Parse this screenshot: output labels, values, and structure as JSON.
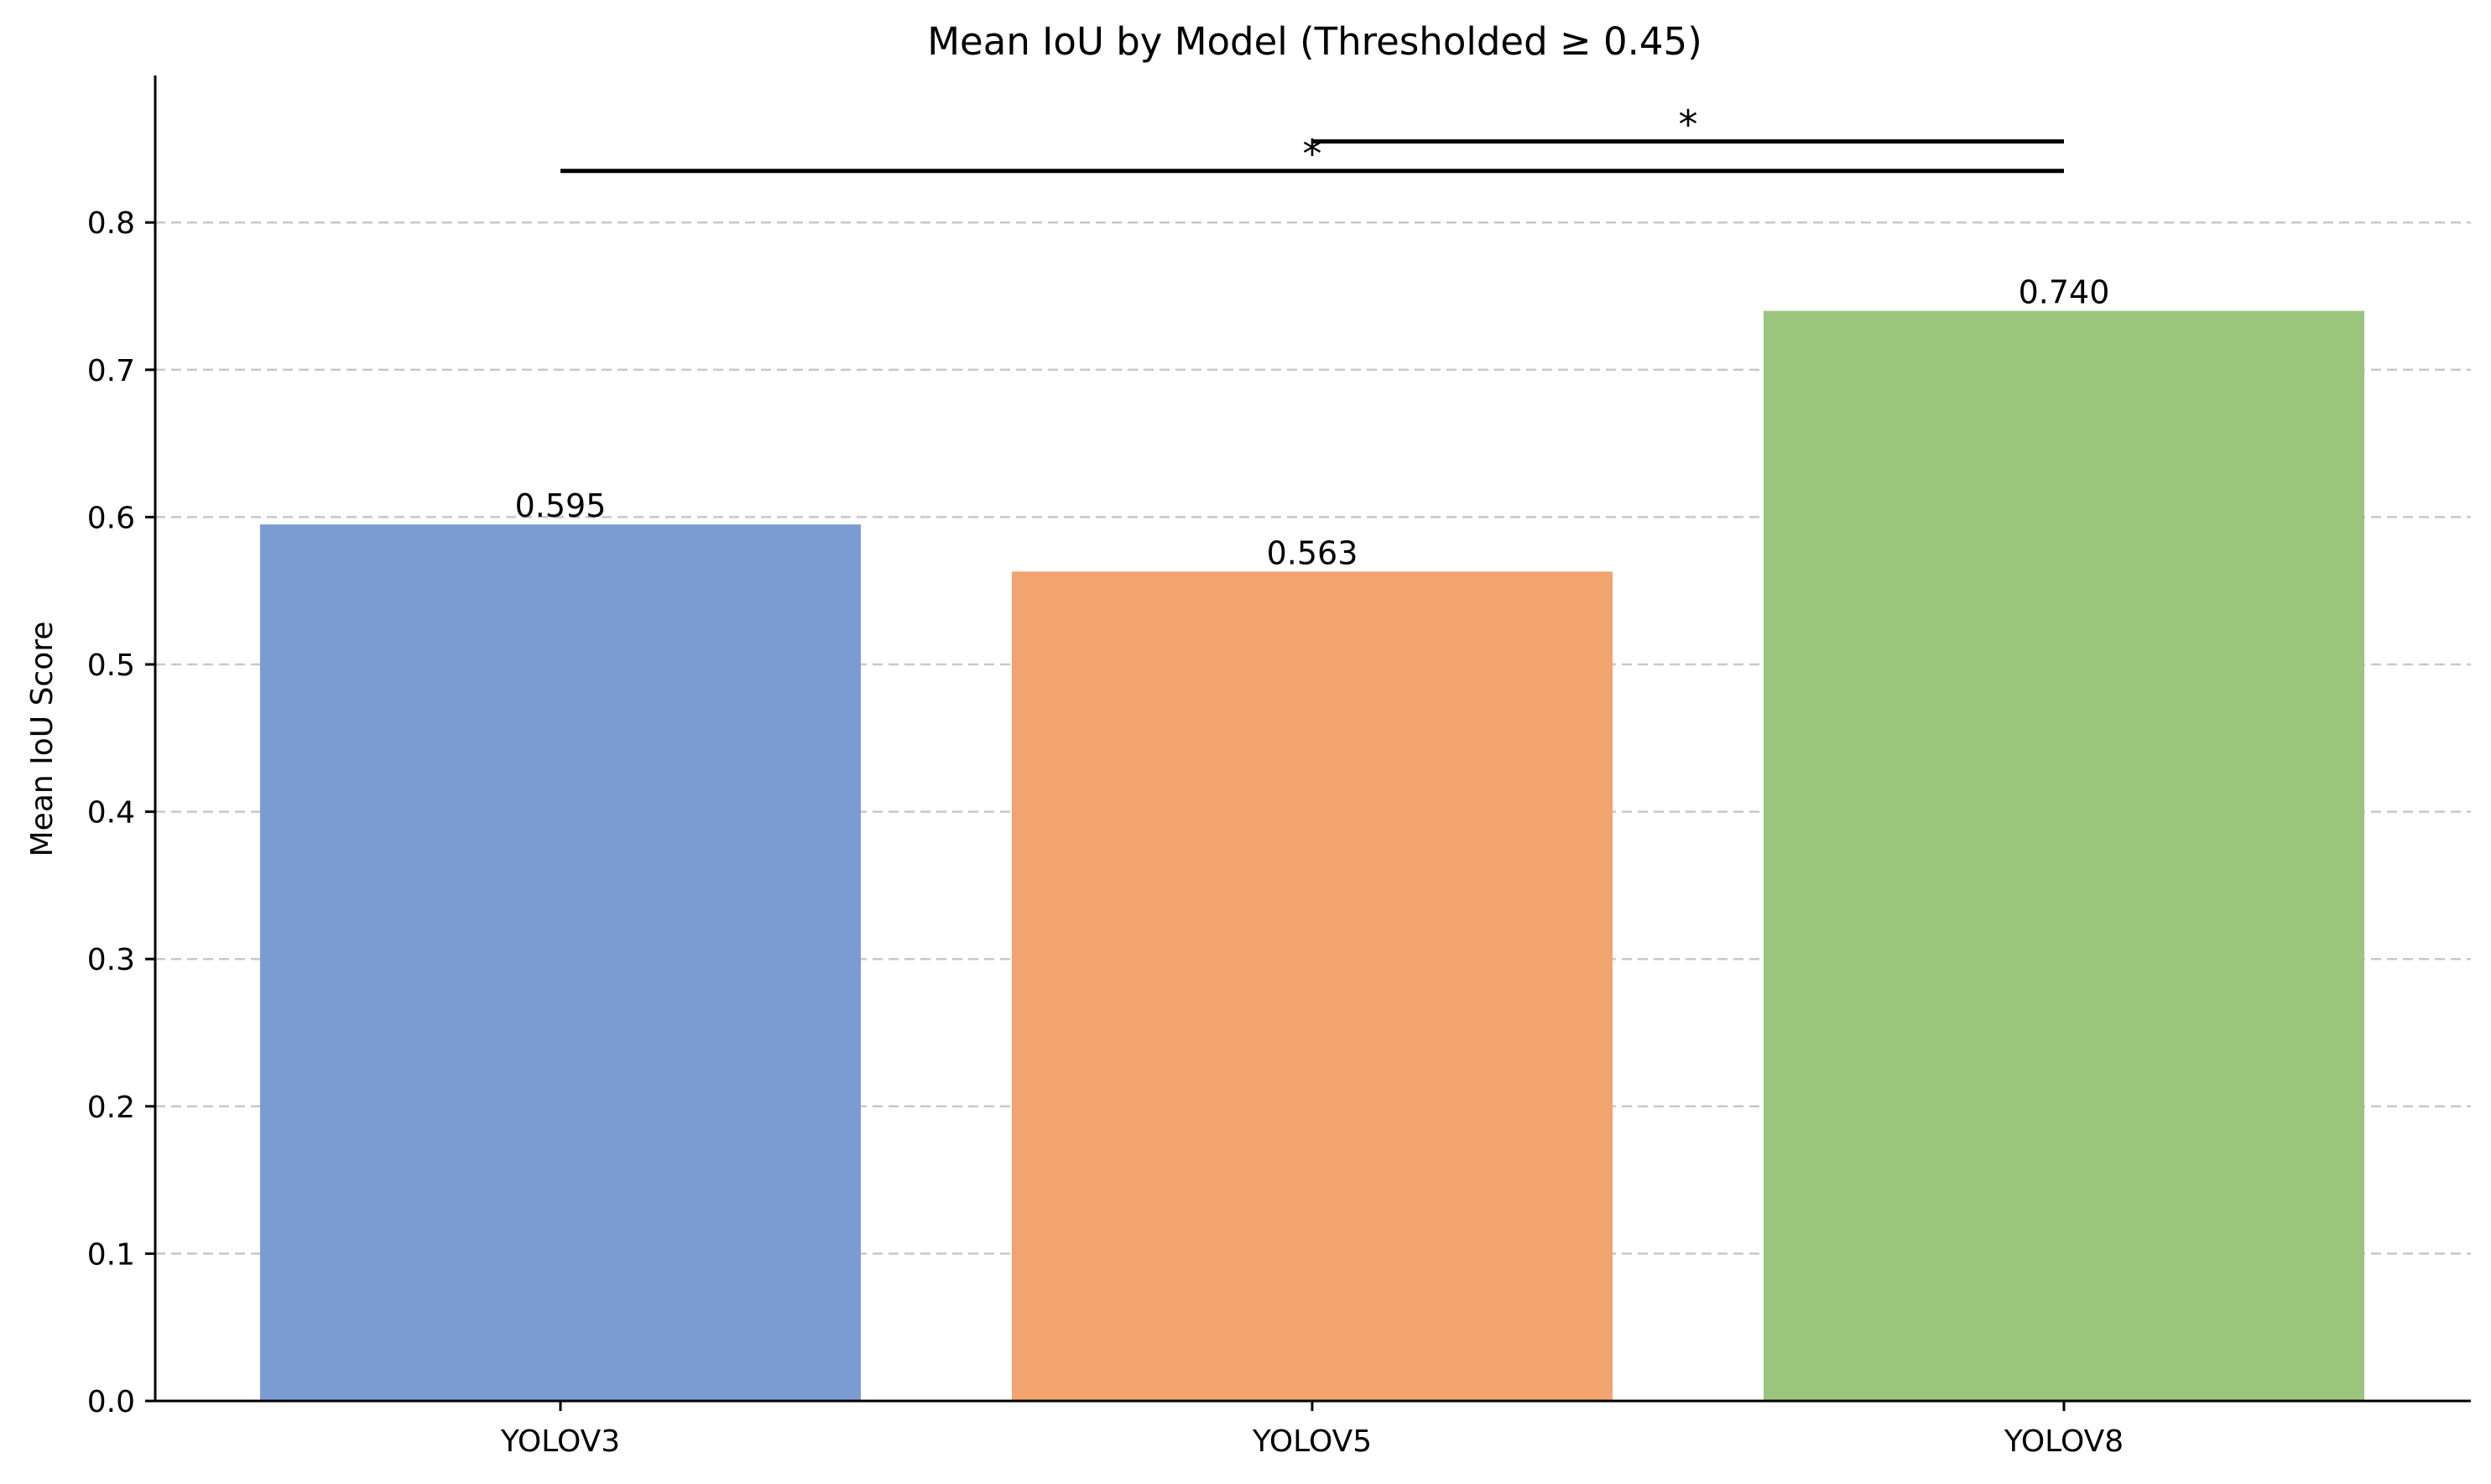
{
  "chart_data": {
    "type": "bar",
    "title": "Mean IoU by Model (Thresholded ≥ 0.45)",
    "xlabel": "",
    "ylabel": "Mean IoU Score",
    "categories": [
      "YOLOV3",
      "YOLOV5",
      "YOLOV8"
    ],
    "values": [
      0.595,
      0.563,
      0.74
    ],
    "value_labels": [
      "0.595",
      "0.563",
      "0.740"
    ],
    "colors": [
      "#7b9bd3",
      "#f2a36e",
      "#9bc47d"
    ],
    "ylim": [
      0,
      0.9
    ],
    "yticks": [
      0.0,
      0.1,
      0.2,
      0.3,
      0.4,
      0.5,
      0.6,
      0.7,
      0.8
    ],
    "ytick_labels": [
      "0.0",
      "0.1",
      "0.2",
      "0.3",
      "0.4",
      "0.5",
      "0.6",
      "0.7",
      "0.8"
    ],
    "grid": "y dashed",
    "significance": [
      {
        "from": "YOLOV3",
        "to": "YOLOV8",
        "level": 0.835,
        "label": "*"
      },
      {
        "from": "YOLOV5",
        "to": "YOLOV8",
        "level": 0.855,
        "label": "*"
      }
    ]
  }
}
